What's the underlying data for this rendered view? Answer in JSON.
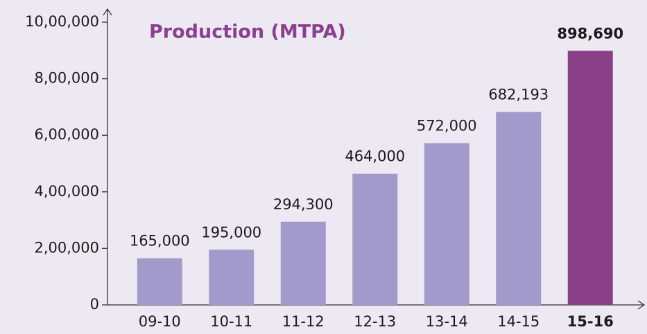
{
  "chart_data": {
    "type": "bar",
    "title": "Production (MTPA)",
    "categories": [
      "09-10",
      "10-11",
      "11-12",
      "12-13",
      "13-14",
      "14-15",
      "15-16"
    ],
    "values": [
      165000,
      195000,
      294300,
      464000,
      572000,
      682193,
      898690
    ],
    "value_labels": [
      "165,000",
      "195,000",
      "294,300",
      "464,000",
      "572,000",
      "682,193",
      "898,690"
    ],
    "colors": [
      "#a29acb",
      "#a29acb",
      "#a29acb",
      "#a29acb",
      "#a29acb",
      "#a29acb",
      "#8a4089"
    ],
    "ylim": [
      0,
      1000000
    ],
    "yticks": [
      {
        "value": 0,
        "label": "0"
      },
      {
        "value": 200000,
        "label": "2,00,000"
      },
      {
        "value": 400000,
        "label": "4,00,000"
      },
      {
        "value": 600000,
        "label": "6,00,000"
      },
      {
        "value": 800000,
        "label": "8,00,000"
      },
      {
        "value": 1000000,
        "label": "10,00,000"
      }
    ]
  }
}
